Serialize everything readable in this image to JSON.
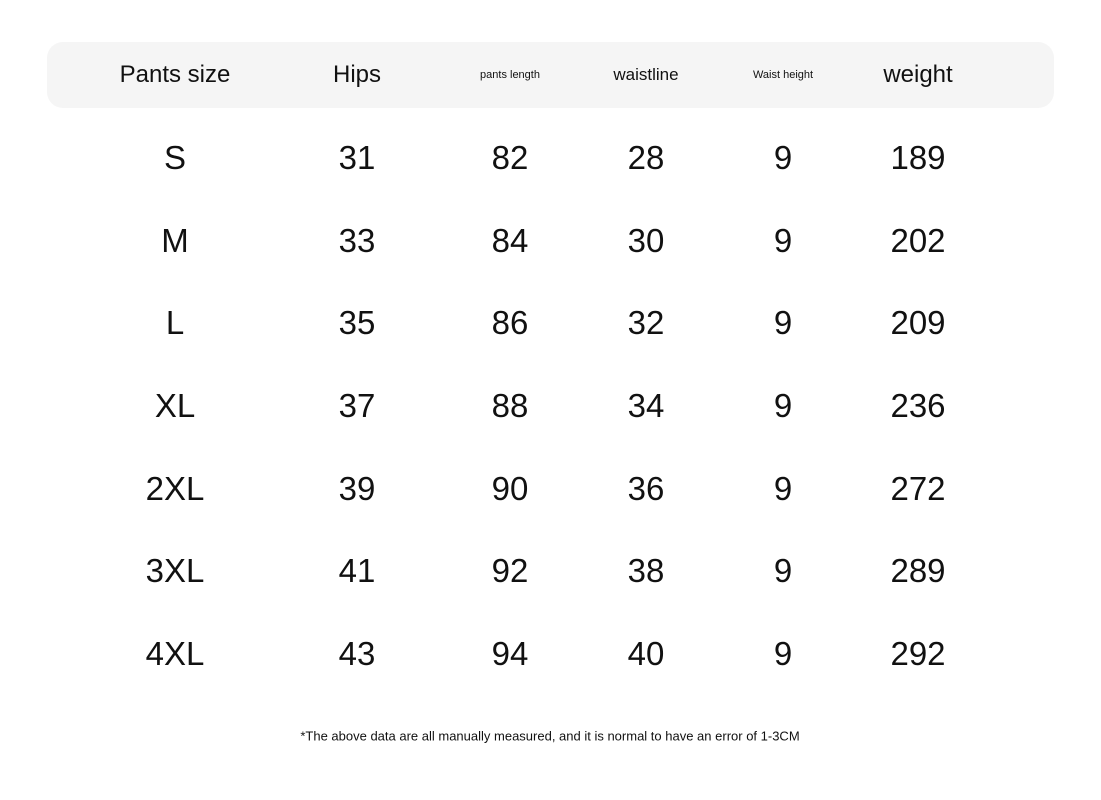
{
  "table": {
    "headers": [
      "Pants size",
      "Hips",
      "pants length",
      "waistline",
      "Waist height",
      "weight"
    ],
    "rows": [
      [
        "S",
        "31",
        "82",
        "28",
        "9",
        "189"
      ],
      [
        "M",
        "33",
        "84",
        "30",
        "9",
        "202"
      ],
      [
        "L",
        "35",
        "86",
        "32",
        "9",
        "209"
      ],
      [
        "XL",
        "37",
        "88",
        "34",
        "9",
        "236"
      ],
      [
        "2XL",
        "39",
        "90",
        "36",
        "9",
        "272"
      ],
      [
        "3XL",
        "41",
        "92",
        "38",
        "9",
        "289"
      ],
      [
        "4XL",
        "43",
        "94",
        "40",
        "9",
        "292"
      ]
    ]
  },
  "note": "*The above data are all manually measured, and it is normal to have an error of 1-3CM",
  "colors": {
    "header_bg": "#f5f5f5",
    "text": "#111111"
  }
}
